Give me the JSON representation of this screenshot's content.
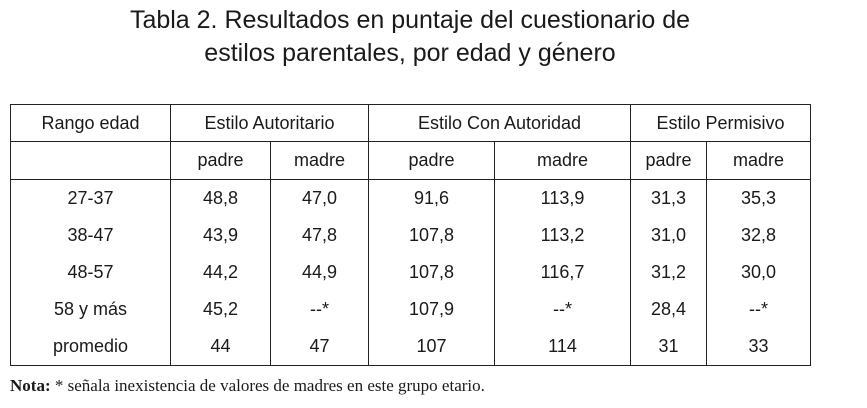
{
  "caption": {
    "label": "Tabla 2.",
    "line1_rest": " Resultados en puntaje del cuestionario de",
    "line2": "estilos parentales, por edad y género"
  },
  "table": {
    "group_headers": [
      "Rango edad",
      "Estilo Autoritario",
      "Estilo Con Autoridad",
      "Estilo Permisivo"
    ],
    "sub_headers": [
      "padre",
      "madre",
      "padre",
      "madre",
      "padre",
      "madre"
    ],
    "rows": [
      {
        "range": "27-37",
        "values": [
          "48,8",
          "47,0",
          "91,6",
          "113,9",
          "31,3",
          "35,3"
        ]
      },
      {
        "range": "38-47",
        "values": [
          "43,9",
          "47,8",
          "107,8",
          "113,2",
          "31,0",
          "32,8"
        ]
      },
      {
        "range": "48-57",
        "values": [
          "44,2",
          "44,9",
          "107,8",
          "116,7",
          "31,2",
          "30,0"
        ]
      },
      {
        "range": "58 y más",
        "values": [
          "45,2",
          "--*",
          "107,9",
          "--*",
          "28,4",
          "--*"
        ]
      },
      {
        "range": "promedio",
        "values": [
          "44",
          "47",
          "107",
          "114",
          "31",
          "33"
        ]
      }
    ]
  },
  "note": {
    "label": "Nota:",
    "text": " * señala inexistencia de valores de madres en este grupo etario."
  }
}
